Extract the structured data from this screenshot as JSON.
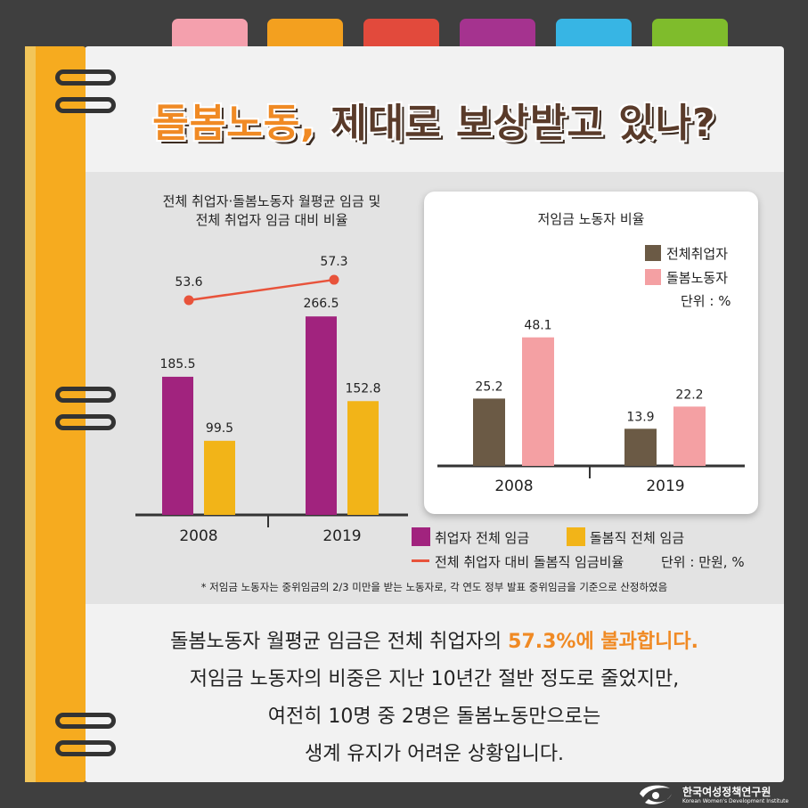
{
  "header": {
    "title_main": "돌봄노동,",
    "title_rest": " 제대로 보상받고 있나?"
  },
  "colors": {
    "tabs": [
      "#f4a0ad",
      "#f3a01f",
      "#e24a3c",
      "#a5338f",
      "#37b5e4",
      "#7fbc2c"
    ],
    "spine": "#f6ab1f",
    "accent": "#f08a24"
  },
  "chart_data": [
    {
      "type": "bar",
      "title": "전체 취업자·돌봄노동자 월평균 임금 및\n전체 취업자 임금 대비 비율",
      "categories": [
        "2008",
        "2019"
      ],
      "series": [
        {
          "name": "취업자 전체 임금",
          "values": [
            185.5,
            266.5
          ],
          "color": "#a1237e"
        },
        {
          "name": "돌봄직 전체 임금",
          "values": [
            99.5,
            152.8
          ],
          "color": "#f2b418"
        }
      ],
      "line_series": {
        "name": "전체 취업자 대비 돌봄직 임금비율",
        "values": [
          53.6,
          57.3
        ],
        "color": "#e8533b"
      },
      "unit": "단위 : 만원, %",
      "ylim": [
        0,
        300
      ],
      "legend_position": "bottom"
    },
    {
      "type": "bar",
      "title": "저임금 노동자 비율",
      "categories": [
        "2008",
        "2019"
      ],
      "series": [
        {
          "name": "전체취업자",
          "values": [
            25.2,
            13.9
          ],
          "color": "#6b5a45"
        },
        {
          "name": "돌봄노동자",
          "values": [
            48.1,
            22.2
          ],
          "color": "#f4a0a3"
        }
      ],
      "unit": "단위 : %",
      "ylim": [
        0,
        60
      ],
      "legend_position": "top-right"
    }
  ],
  "chart1": {
    "title_line1": "전체 취업자·돌봄노동자 월평균 임금 및",
    "title_line2": "전체 취업자 임금 대비 비율",
    "legend": {
      "total": "취업자 전체 임금",
      "care": "돌봄직 전체 임금",
      "ratio": "전체 취업자 대비 돌봄직 임금비율",
      "unit": "단위 : 만원, %"
    }
  },
  "chart2": {
    "title": "저임금 노동자 비율",
    "legend": {
      "total": "전체취업자",
      "care": "돌봄노동자",
      "unit": "단위 : %"
    }
  },
  "footnote": "* 저임금 노동자는 중위임금의 2/3 미만을 받는 노동자로, 각 연도 정부 발표 중위임금을 기준으로 산정하였음",
  "summary": {
    "line1_a": "돌봄노동자 월평균 임금은 전체 취업자의 ",
    "line1_b": "57.3%에 불과합니다.",
    "line2": "저임금 노동자의 비중은 지난 10년간 절반 정도로 줄었지만,",
    "line3": "여전히 10명 중 2명은 돌봄노동만으로는",
    "line4": "생계 유지가 어려운 상황입니다."
  },
  "footer": {
    "org_name": "한국여성정책연구원",
    "org_name_en": "Korean Women's Development Institute"
  }
}
